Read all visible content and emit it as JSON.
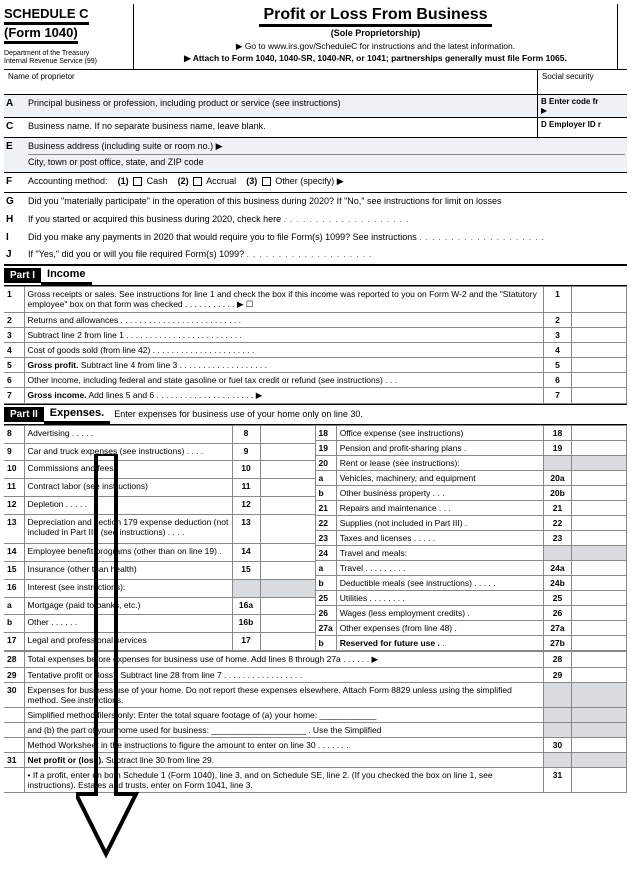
{
  "header": {
    "schedule": "SCHEDULE C",
    "form": "(Form 1040)",
    "dept1": "Department of the Treasury",
    "dept2": "Internal Revenue Service (99)",
    "title": "Profit or Loss From Business",
    "subtitle": "(Sole Proprietorship)",
    "goto": "▶ Go to www.irs.gov/ScheduleC for instructions and the latest information.",
    "attach": "▶ Attach to Form 1040, 1040-SR, 1040-NR, or 1041; partnerships generally must file Form 1065."
  },
  "nameRow": {
    "name": "Name of proprietor",
    "ssn": "Social security"
  },
  "secA": {
    "letter": "A",
    "text": "Principal business or profession, including product or service (see instructions)",
    "rlabel": "B  Enter code fr",
    "arrow": "▶"
  },
  "secC": {
    "letter": "C",
    "text": "Business name. If no separate business name, leave blank.",
    "rlabel": "D  Employer ID r"
  },
  "secE": {
    "letter": "E",
    "l1": "Business address (including suite or room no.) ▶",
    "l2": "City, town or post office, state, and ZIP code"
  },
  "secF": {
    "letter": "F",
    "text": "Accounting method:",
    "o1": "(1)",
    "o1l": "Cash",
    "o2": "(2)",
    "o2l": "Accrual",
    "o3": "(3)",
    "o3l": "Other (specify) ▶"
  },
  "secG": {
    "letter": "G",
    "text": "Did you \"materially participate\" in the operation of this business during 2020? If \"No,\" see instructions for limit on losses"
  },
  "secH": {
    "letter": "H",
    "text": "If you started or acquired this business during 2020, check here"
  },
  "secI": {
    "letter": "I",
    "text": "Did you make any payments in 2020 that would require you to file Form(s) 1099? See instructions"
  },
  "secJ": {
    "letter": "J",
    "text": "If \"Yes,\" did you or will you file required Form(s) 1099?"
  },
  "part1": {
    "tag": "Part I",
    "label": "Income"
  },
  "incomeLines": [
    {
      "n": "1",
      "t": "Gross receipts or sales. See instructions for line 1 and check the box if this income was reported to you on Form W-2 and the \"Statutory employee\" box on that form was checked  . . . . . . . . . . . ▶ ☐",
      "b": "1"
    },
    {
      "n": "2",
      "t": "Returns and allowances  . . . . . . . . . . . . . . . . . . . . . . . . . .",
      "b": "2"
    },
    {
      "n": "3",
      "t": "Subtract line 2 from line 1  . . . . . . . . . . . . . . . . . . . . . . . . .",
      "b": "3"
    },
    {
      "n": "4",
      "t": "Cost of goods sold (from line 42)  . . . . . . . . . . . . . . . . . . . . . .",
      "b": "4"
    },
    {
      "n": "5",
      "t": "Gross profit.  Subtract line 4 from line 3  . . . . . . . . . . . . . . . . . . .",
      "b": "5",
      "bold": true
    },
    {
      "n": "6",
      "t": "Other income, including federal and state gasoline or fuel tax credit or refund (see instructions)  . . .",
      "b": "6"
    },
    {
      "n": "7",
      "t": "Gross income.  Add lines 5 and 6  . . . . . . . . . . . . . . . . . . . . . ▶",
      "b": "7",
      "bold": true
    }
  ],
  "part2": {
    "tag": "Part II",
    "label": "Expenses.",
    "extra": "Enter expenses for business use of your home only on line 30."
  },
  "expL": [
    {
      "n": "8",
      "t": "Advertising  . . . . .",
      "b": "8"
    },
    {
      "n": "9",
      "t": "Car and truck expenses (see instructions)  . . . .",
      "b": "9"
    },
    {
      "n": "10",
      "t": "Commissions and fees  .",
      "b": "10"
    },
    {
      "n": "11",
      "t": "Contract labor (see instructions)",
      "b": "11"
    },
    {
      "n": "12",
      "t": "Depletion  . . . . .",
      "b": "12"
    },
    {
      "n": "13",
      "t": "Depreciation and section 179 expense deduction (not included in Part III) (see instructions)  . . . .",
      "b": "13"
    },
    {
      "n": "14",
      "t": "Employee benefit programs (other than on line 19) .",
      "b": "14"
    },
    {
      "n": "15",
      "t": "Insurance (other than health)",
      "b": "15"
    },
    {
      "n": "16",
      "t": "Interest (see instructions):",
      "b": ""
    },
    {
      "n": "a",
      "t": "Mortgage (paid to banks, etc.)",
      "b": "16a"
    },
    {
      "n": "b",
      "t": "Other  . . . . . .",
      "b": "16b"
    },
    {
      "n": "17",
      "t": "Legal and professional services",
      "b": "17"
    }
  ],
  "expR": [
    {
      "n": "18",
      "t": "Office expense (see instructions)",
      "b": "18"
    },
    {
      "n": "19",
      "t": "Pension and profit-sharing plans  .",
      "b": "19"
    },
    {
      "n": "20",
      "t": "Rent or lease (see instructions):",
      "b": ""
    },
    {
      "n": "a",
      "t": "Vehicles, machinery, and equipment",
      "b": "20a"
    },
    {
      "n": "b",
      "t": "Other business property  . . .",
      "b": "20b"
    },
    {
      "n": "21",
      "t": "Repairs and maintenance .  .  .",
      "b": "21"
    },
    {
      "n": "22",
      "t": "Supplies (not included in Part III) .",
      "b": "22"
    },
    {
      "n": "23",
      "t": "Taxes and licenses .  .  .  .  .",
      "b": "23"
    },
    {
      "n": "24",
      "t": "Travel and meals:",
      "b": ""
    },
    {
      "n": "a",
      "t": "Travel .  .  .  .  .  .  .  .  .",
      "b": "24a"
    },
    {
      "n": "b",
      "t": "Deductible meals (see instructions)  .  .  .  .  .",
      "b": "24b"
    },
    {
      "n": "25",
      "t": "Utilities  .  .  .  .  .  .  .  .",
      "b": "25"
    },
    {
      "n": "26",
      "t": "Wages (less employment credits) .",
      "b": "26"
    },
    {
      "n": "27a",
      "t": "Other expenses (from line 48) .",
      "b": "27a"
    },
    {
      "n": "b",
      "t": "Reserved for future use  .  .",
      "b": "27b",
      "bold": true
    }
  ],
  "bottomLines": [
    {
      "n": "28",
      "t": "Total expenses before expenses for business use of home. Add lines 8 through 27a  .  .  .  .  .  . ▶",
      "b": "28"
    },
    {
      "n": "29",
      "t": "Tentative profit or (loss). Subtract line 28 from line 7 .  .  .  .  .  .  .  .  .  .  .  .  .  .  .  .  .",
      "b": "29"
    },
    {
      "n": "30",
      "t": "Expenses for business use of your home. Do not report these expenses elsewhere. Attach Form 8829 unless using the simplified method. See instructions.",
      "b": ""
    },
    {
      "n": "",
      "t": "Simplified method filers only: Enter the total square footage of (a) your home: ____________",
      "b": ""
    },
    {
      "n": "",
      "t": "and (b) the part of your home used for business: ____________________ . Use the Simplified",
      "b": ""
    },
    {
      "n": "",
      "t": "Method Worksheet in the instructions to figure the amount to enter on line 30  .  .  .  .  .  .  .",
      "b": "30"
    },
    {
      "n": "31",
      "t": "Net profit or (loss).  Subtract line 30 from line 29.",
      "b": "",
      "bold": true
    },
    {
      "n": "",
      "t": "•  If a profit, enter on both Schedule 1 (Form 1040), line 3, and on Schedule SE, line 2. (If you checked the box on line 1, see instructions). Estates and trusts, enter on Form 1041, line 3.",
      "b": "31"
    }
  ]
}
